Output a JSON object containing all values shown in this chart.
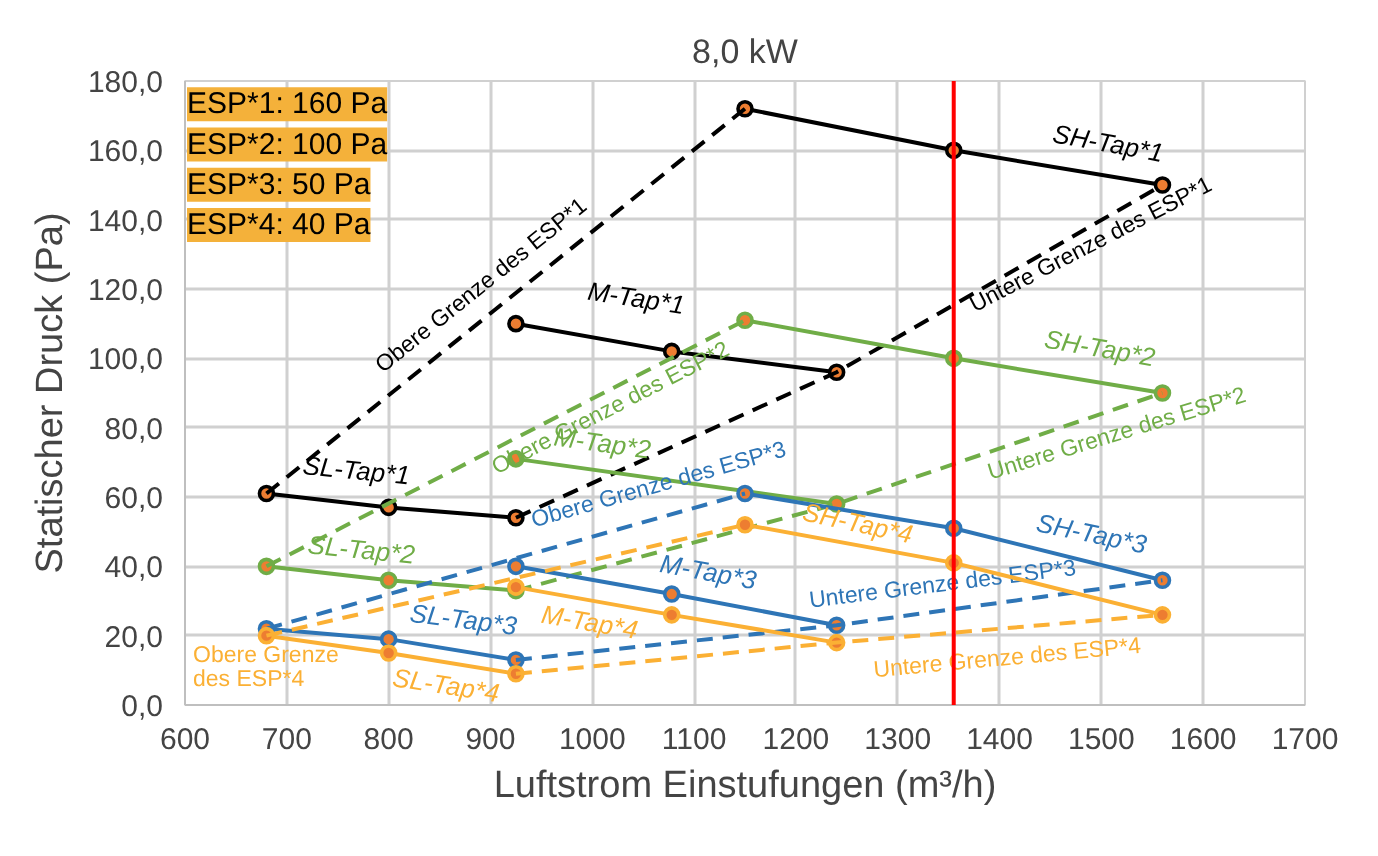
{
  "chart_data": {
    "type": "line",
    "title": "8,0 kW",
    "xlabel": "Luftstrom Einstufungen (m³/h)",
    "ylabel": "Statischer Druck (Pa)",
    "xlim": [
      600,
      1700
    ],
    "xticks": [
      600,
      700,
      800,
      900,
      1000,
      1100,
      1200,
      1300,
      1400,
      1500,
      1600,
      1700
    ],
    "ylim": [
      0,
      180
    ],
    "yticks": [
      {
        "value": 0,
        "label": "0,0"
      },
      {
        "value": 20,
        "label": "20,0"
      },
      {
        "value": 40,
        "label": "40,0"
      },
      {
        "value": 60,
        "label": "60,0"
      },
      {
        "value": 80,
        "label": "80,0"
      },
      {
        "value": 100,
        "label": "100,0"
      },
      {
        "value": 120,
        "label": "120,0"
      },
      {
        "value": 140,
        "label": "140,0"
      },
      {
        "value": 160,
        "label": "160,0"
      },
      {
        "value": 180,
        "label": "180,0"
      }
    ],
    "grid": true,
    "series": [
      {
        "name": "SH-Tap*1",
        "color": "#000000",
        "x": [
          1150,
          1355,
          1560
        ],
        "values": [
          172,
          160,
          150
        ],
        "marker": "circle",
        "line_style": "solid"
      },
      {
        "name": "M-Tap*1",
        "color": "#000000",
        "x": [
          925,
          1078,
          1240
        ],
        "values": [
          110,
          102,
          96
        ],
        "marker": "circle",
        "line_style": "solid"
      },
      {
        "name": "SL-Tap*1",
        "color": "#000000",
        "x": [
          680,
          800,
          925
        ],
        "values": [
          61,
          57,
          54
        ],
        "marker": "circle",
        "line_style": "solid"
      },
      {
        "name": "Obere Grenze des ESP*1",
        "color": "#000000",
        "x": [
          680,
          1150
        ],
        "values": [
          61,
          172
        ],
        "marker": "none",
        "line_style": "dashed"
      },
      {
        "name": "Untere Grenze des ESP*1",
        "color": "#000000",
        "x": [
          925,
          1240,
          1560
        ],
        "values": [
          54,
          96,
          150
        ],
        "marker": "none",
        "line_style": "dashed"
      },
      {
        "name": "SH-Tap*2",
        "color": "#70ad47",
        "x": [
          1150,
          1355,
          1560
        ],
        "values": [
          111,
          100,
          90
        ],
        "marker": "circle",
        "line_style": "solid"
      },
      {
        "name": "M-Tap*2",
        "color": "#70ad47",
        "x": [
          925,
          1240
        ],
        "values": [
          71,
          58
        ],
        "marker": "circle",
        "line_style": "solid"
      },
      {
        "name": "SL-Tap*2",
        "color": "#70ad47",
        "x": [
          680,
          800,
          925
        ],
        "values": [
          40,
          36,
          33
        ],
        "marker": "circle",
        "line_style": "solid"
      },
      {
        "name": "Obere Grenze des ESP*2",
        "color": "#70ad47",
        "x": [
          680,
          1150
        ],
        "values": [
          40,
          111
        ],
        "marker": "none",
        "line_style": "dashed"
      },
      {
        "name": "Untere Grenze des ESP*2",
        "color": "#70ad47",
        "x": [
          925,
          1240,
          1560
        ],
        "values": [
          33,
          58,
          90
        ],
        "marker": "none",
        "line_style": "dashed"
      },
      {
        "name": "SH-Tap*3",
        "color": "#2e75b6",
        "x": [
          1150,
          1355,
          1560
        ],
        "values": [
          61,
          51,
          36
        ],
        "marker": "circle",
        "line_style": "solid"
      },
      {
        "name": "M-Tap*3",
        "color": "#2e75b6",
        "x": [
          925,
          1078,
          1240
        ],
        "values": [
          40,
          32,
          23
        ],
        "marker": "circle",
        "line_style": "solid"
      },
      {
        "name": "SL-Tap*3",
        "color": "#2e75b6",
        "x": [
          680,
          800,
          925
        ],
        "values": [
          22,
          19,
          13
        ],
        "marker": "circle",
        "line_style": "solid"
      },
      {
        "name": "Obere Grenze des ESP*3",
        "color": "#2e75b6",
        "x": [
          680,
          1150
        ],
        "values": [
          22,
          61
        ],
        "marker": "none",
        "line_style": "dashed"
      },
      {
        "name": "Untere Grenze des ESP*3",
        "color": "#2e75b6",
        "x": [
          925,
          1240,
          1560
        ],
        "values": [
          13,
          23,
          36
        ],
        "marker": "none",
        "line_style": "dashed"
      },
      {
        "name": "SH-Tap*4",
        "color": "#fbb034",
        "x": [
          1150,
          1355,
          1560
        ],
        "values": [
          52,
          41,
          26
        ],
        "marker": "circle",
        "line_style": "solid"
      },
      {
        "name": "M-Tap*4",
        "color": "#fbb034",
        "x": [
          925,
          1078,
          1240
        ],
        "values": [
          34,
          26,
          18
        ],
        "marker": "circle",
        "line_style": "solid"
      },
      {
        "name": "SL-Tap*4",
        "color": "#fbb034",
        "x": [
          680,
          800,
          925
        ],
        "values": [
          20,
          15,
          9
        ],
        "marker": "circle",
        "line_style": "solid"
      },
      {
        "name": "Obere Grenze des ESP*4",
        "color": "#fbb034",
        "x": [
          680,
          1150
        ],
        "values": [
          20,
          52
        ],
        "marker": "none",
        "line_style": "dashed"
      },
      {
        "name": "Untere Grenze des ESP*4",
        "color": "#fbb034",
        "x": [
          925,
          1240,
          1560
        ],
        "values": [
          9,
          18,
          26
        ],
        "marker": "none",
        "line_style": "dashed"
      }
    ],
    "ref_lines": [
      {
        "axis": "x",
        "value": 1355,
        "color": "#ff0000",
        "line_style": "solid"
      }
    ],
    "annotations": [
      "ESP*1: 160 Pa",
      "ESP*2: 100 Pa",
      "ESP*3: 50 Pa",
      "ESP*4: 40 Pa"
    ]
  }
}
